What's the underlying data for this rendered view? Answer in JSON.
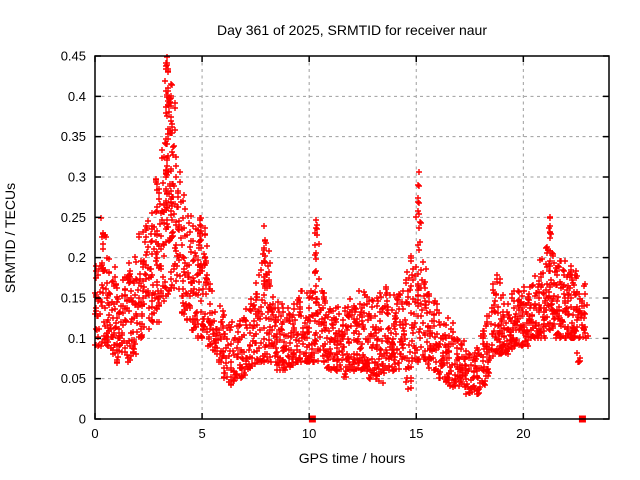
{
  "title": "Day 361 of 2025, SRMTID for receiver naur",
  "chart_data": {
    "type": "scatter",
    "title": "Day 361 of 2025, SRMTID for receiver naur",
    "xlabel": "GPS time / hours",
    "ylabel": "SRMTID / TECUs",
    "xlim": [
      0,
      24
    ],
    "ylim": [
      0,
      0.45
    ],
    "xticks": [
      0,
      5,
      10,
      15,
      20
    ],
    "yticks": [
      0,
      0.05,
      0.1,
      0.15,
      0.2,
      0.25,
      0.3,
      0.35,
      0.4,
      0.45
    ],
    "grid": "dashed-grey",
    "marker": "plus",
    "marker_color": "#ff0000",
    "grid_color": "#9e9e9e",
    "axis_color": "#000000",
    "description": "Dense scatter of SRMTID values vs GPS time; bulk band 0.05-0.2 TECU, broad maximum near hour 3.4 reaching 0.45, minimum near hour 17.5 around 0.03, data ends near hour 23.",
    "profile_bins": {
      "bin_width_hours": 0.25,
      "columns": [
        "start_hour",
        "y_min",
        "y_max",
        "n_points"
      ],
      "rows": [
        [
          0.0,
          0.09,
          0.21,
          26
        ],
        [
          0.25,
          0.09,
          0.25,
          26
        ],
        [
          0.5,
          0.09,
          0.2,
          26
        ],
        [
          0.75,
          0.08,
          0.19,
          26
        ],
        [
          1.0,
          0.07,
          0.17,
          26
        ],
        [
          1.25,
          0.08,
          0.18,
          26
        ],
        [
          1.5,
          0.07,
          0.2,
          26
        ],
        [
          1.75,
          0.08,
          0.21,
          26
        ],
        [
          2.0,
          0.1,
          0.23,
          28
        ],
        [
          2.25,
          0.11,
          0.25,
          28
        ],
        [
          2.5,
          0.12,
          0.26,
          28
        ],
        [
          2.75,
          0.12,
          0.3,
          28
        ],
        [
          3.0,
          0.14,
          0.37,
          30
        ],
        [
          3.25,
          0.15,
          0.44,
          32
        ],
        [
          3.5,
          0.16,
          0.41,
          30
        ],
        [
          3.75,
          0.15,
          0.33,
          28
        ],
        [
          4.0,
          0.13,
          0.28,
          28
        ],
        [
          4.25,
          0.12,
          0.26,
          26
        ],
        [
          4.5,
          0.11,
          0.24,
          26
        ],
        [
          4.75,
          0.1,
          0.24,
          26
        ],
        [
          5.0,
          0.1,
          0.22,
          24
        ],
        [
          5.25,
          0.09,
          0.17,
          22
        ],
        [
          5.5,
          0.08,
          0.15,
          20
        ],
        [
          5.75,
          0.07,
          0.14,
          20
        ],
        [
          6.0,
          0.05,
          0.13,
          20
        ],
        [
          6.25,
          0.04,
          0.12,
          20
        ],
        [
          6.5,
          0.05,
          0.12,
          20
        ],
        [
          6.75,
          0.05,
          0.13,
          22
        ],
        [
          7.0,
          0.06,
          0.14,
          22
        ],
        [
          7.25,
          0.06,
          0.15,
          22
        ],
        [
          7.5,
          0.07,
          0.18,
          24
        ],
        [
          7.75,
          0.07,
          0.22,
          24
        ],
        [
          8.0,
          0.07,
          0.2,
          24
        ],
        [
          8.25,
          0.07,
          0.16,
          24
        ],
        [
          8.5,
          0.06,
          0.15,
          24
        ],
        [
          8.75,
          0.06,
          0.14,
          24
        ],
        [
          9.0,
          0.06,
          0.14,
          24
        ],
        [
          9.25,
          0.07,
          0.15,
          24
        ],
        [
          9.5,
          0.07,
          0.16,
          24
        ],
        [
          9.75,
          0.07,
          0.16,
          24
        ],
        [
          10.0,
          0.07,
          0.17,
          24
        ],
        [
          10.25,
          0.07,
          0.22,
          24
        ],
        [
          10.5,
          0.07,
          0.16,
          24
        ],
        [
          10.75,
          0.06,
          0.15,
          24
        ],
        [
          11.0,
          0.06,
          0.14,
          26
        ],
        [
          11.25,
          0.06,
          0.14,
          26
        ],
        [
          11.5,
          0.05,
          0.14,
          26
        ],
        [
          11.75,
          0.06,
          0.15,
          26
        ],
        [
          12.0,
          0.06,
          0.15,
          26
        ],
        [
          12.25,
          0.06,
          0.16,
          26
        ],
        [
          12.5,
          0.06,
          0.16,
          26
        ],
        [
          12.75,
          0.05,
          0.15,
          26
        ],
        [
          13.0,
          0.05,
          0.15,
          26
        ],
        [
          13.25,
          0.045,
          0.16,
          26
        ],
        [
          13.5,
          0.06,
          0.17,
          26
        ],
        [
          13.75,
          0.06,
          0.16,
          26
        ],
        [
          14.0,
          0.06,
          0.16,
          26
        ],
        [
          14.25,
          0.07,
          0.17,
          26
        ],
        [
          14.5,
          0.035,
          0.19,
          26
        ],
        [
          14.75,
          0.07,
          0.22,
          26
        ],
        [
          15.0,
          0.07,
          0.26,
          26
        ],
        [
          15.25,
          0.07,
          0.2,
          24
        ],
        [
          15.5,
          0.06,
          0.16,
          24
        ],
        [
          15.75,
          0.06,
          0.15,
          24
        ],
        [
          16.0,
          0.05,
          0.14,
          22
        ],
        [
          16.25,
          0.04,
          0.13,
          22
        ],
        [
          16.5,
          0.04,
          0.12,
          22
        ],
        [
          16.75,
          0.04,
          0.11,
          22
        ],
        [
          17.0,
          0.04,
          0.1,
          22
        ],
        [
          17.25,
          0.03,
          0.09,
          22
        ],
        [
          17.5,
          0.03,
          0.08,
          22
        ],
        [
          17.75,
          0.03,
          0.09,
          22
        ],
        [
          18.0,
          0.04,
          0.11,
          22
        ],
        [
          18.25,
          0.05,
          0.13,
          24
        ],
        [
          18.5,
          0.07,
          0.17,
          24
        ],
        [
          18.75,
          0.08,
          0.18,
          26
        ],
        [
          19.0,
          0.08,
          0.17,
          26
        ],
        [
          19.25,
          0.08,
          0.16,
          26
        ],
        [
          19.5,
          0.09,
          0.16,
          26
        ],
        [
          19.75,
          0.09,
          0.16,
          26
        ],
        [
          20.0,
          0.09,
          0.17,
          26
        ],
        [
          20.25,
          0.1,
          0.17,
          26
        ],
        [
          20.5,
          0.1,
          0.18,
          26
        ],
        [
          20.75,
          0.1,
          0.2,
          26
        ],
        [
          21.0,
          0.11,
          0.24,
          28
        ],
        [
          21.25,
          0.11,
          0.21,
          28
        ],
        [
          21.5,
          0.1,
          0.21,
          28
        ],
        [
          21.75,
          0.1,
          0.2,
          28
        ],
        [
          22.0,
          0.1,
          0.19,
          28
        ],
        [
          22.25,
          0.1,
          0.19,
          28
        ],
        [
          22.5,
          0.07,
          0.18,
          26
        ],
        [
          22.75,
          0.1,
          0.17,
          18
        ]
      ]
    },
    "spike_columns": {
      "columns": [
        "hour",
        "y_min",
        "y_max",
        "n_points"
      ],
      "rows": [
        [
          0.35,
          0.18,
          0.25,
          8
        ],
        [
          2.88,
          0.18,
          0.31,
          12
        ],
        [
          3.35,
          0.22,
          0.45,
          26
        ],
        [
          3.42,
          0.3,
          0.44,
          14
        ],
        [
          3.55,
          0.22,
          0.42,
          18
        ],
        [
          3.62,
          0.2,
          0.37,
          12
        ],
        [
          4.9,
          0.17,
          0.25,
          12
        ],
        [
          5.15,
          0.15,
          0.24,
          10
        ],
        [
          7.9,
          0.14,
          0.24,
          12
        ],
        [
          8.15,
          0.13,
          0.21,
          10
        ],
        [
          10.32,
          0.12,
          0.26,
          14
        ],
        [
          15.1,
          0.14,
          0.31,
          16
        ],
        [
          21.25,
          0.14,
          0.255,
          14
        ]
      ]
    },
    "axis_square_markers": {
      "marker": "filled-square",
      "color": "#ff0000",
      "points": [
        [
          10.15,
          0
        ],
        [
          22.76,
          0
        ]
      ]
    }
  }
}
